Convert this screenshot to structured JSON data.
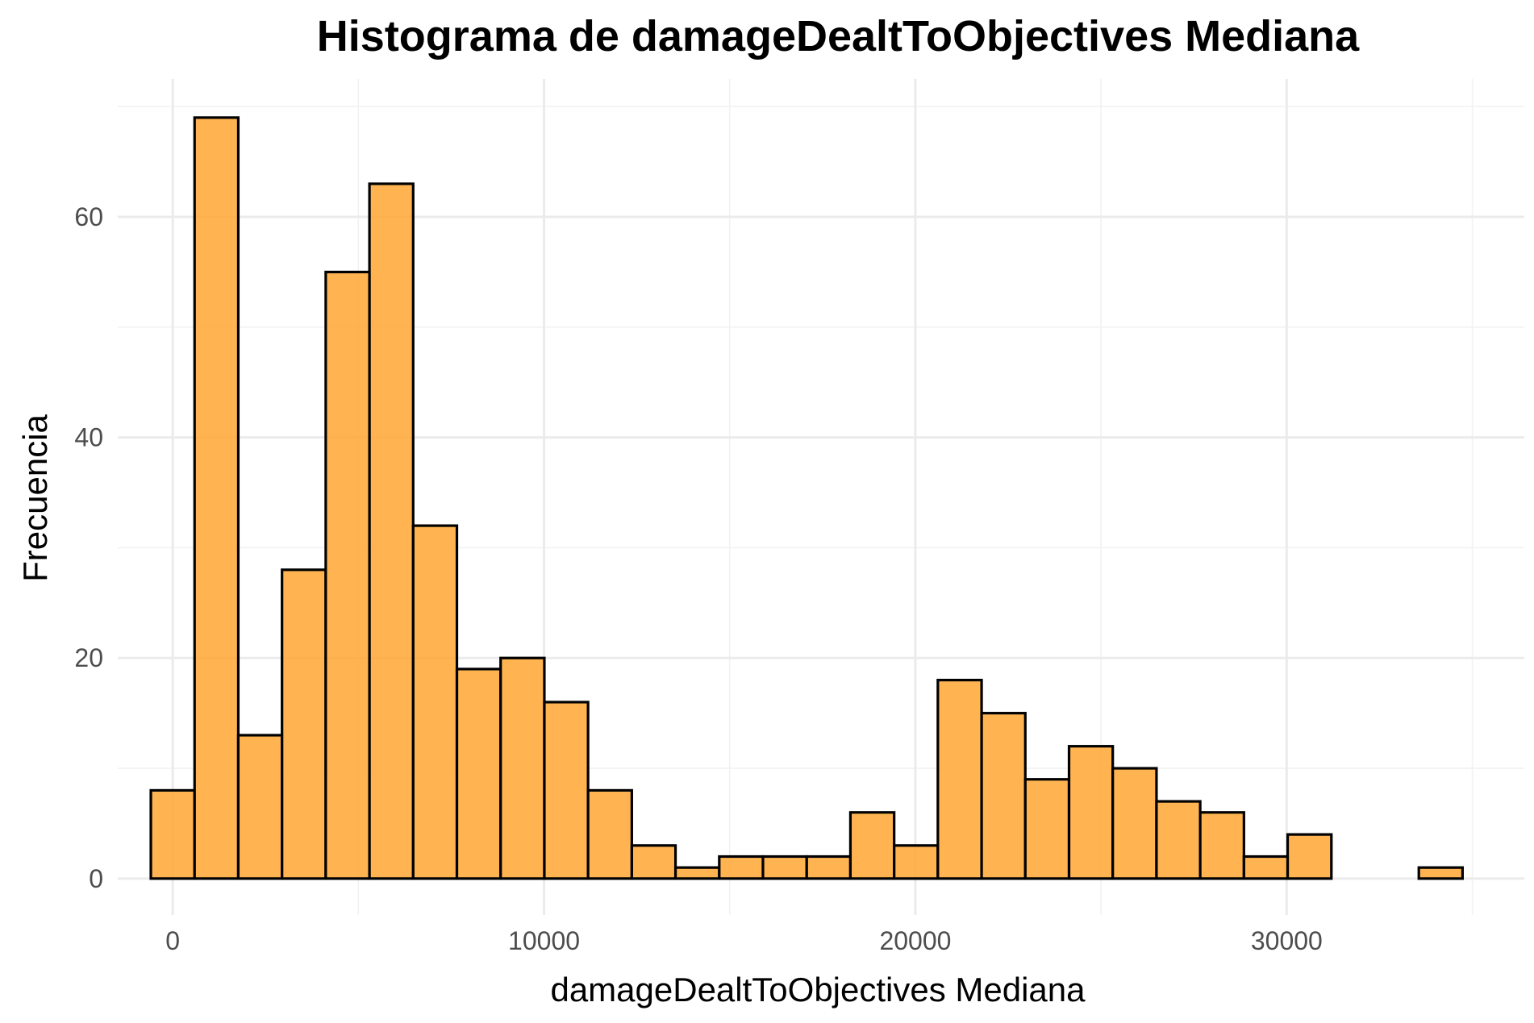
{
  "chart_data": {
    "type": "bar",
    "title": "Histograma de damageDealtToObjectives Mediana",
    "xlabel": "damageDealtToObjectives Mediana",
    "ylabel": "Frecuencia",
    "bin_width": 1177.5,
    "bins": [
      {
        "x0": -589,
        "x1": 589,
        "count": 8
      },
      {
        "x0": 589,
        "x1": 1766,
        "count": 69
      },
      {
        "x0": 1766,
        "x1": 2944,
        "count": 13
      },
      {
        "x0": 2944,
        "x1": 4121,
        "count": 28
      },
      {
        "x0": 4121,
        "x1": 5299,
        "count": 55
      },
      {
        "x0": 5299,
        "x1": 6476,
        "count": 63
      },
      {
        "x0": 6476,
        "x1": 7654,
        "count": 32
      },
      {
        "x0": 7654,
        "x1": 8831,
        "count": 19
      },
      {
        "x0": 8831,
        "x1": 10009,
        "count": 20
      },
      {
        "x0": 10009,
        "x1": 11186,
        "count": 16
      },
      {
        "x0": 11186,
        "x1": 12364,
        "count": 8
      },
      {
        "x0": 12364,
        "x1": 13541,
        "count": 3
      },
      {
        "x0": 13541,
        "x1": 14719,
        "count": 1
      },
      {
        "x0": 14719,
        "x1": 15896,
        "count": 2
      },
      {
        "x0": 15896,
        "x1": 17074,
        "count": 2
      },
      {
        "x0": 17074,
        "x1": 18251,
        "count": 2
      },
      {
        "x0": 18251,
        "x1": 19429,
        "count": 6
      },
      {
        "x0": 19429,
        "x1": 20606,
        "count": 3
      },
      {
        "x0": 20606,
        "x1": 21784,
        "count": 18
      },
      {
        "x0": 21784,
        "x1": 22961,
        "count": 15
      },
      {
        "x0": 22961,
        "x1": 24139,
        "count": 9
      },
      {
        "x0": 24139,
        "x1": 25316,
        "count": 12
      },
      {
        "x0": 25316,
        "x1": 26494,
        "count": 10
      },
      {
        "x0": 26494,
        "x1": 27671,
        "count": 7
      },
      {
        "x0": 27671,
        "x1": 28849,
        "count": 6
      },
      {
        "x0": 28849,
        "x1": 30026,
        "count": 2
      },
      {
        "x0": 30026,
        "x1": 31204,
        "count": 4
      },
      {
        "x0": 31204,
        "x1": 32381,
        "count": 0
      },
      {
        "x0": 32381,
        "x1": 33559,
        "count": 0
      },
      {
        "x0": 33559,
        "x1": 34736,
        "count": 1
      }
    ],
    "xlim": [
      -1480,
      36400
    ],
    "ylim": [
      -3.3,
      72.5
    ],
    "x_ticks": [
      0,
      10000,
      20000,
      30000
    ],
    "x_tick_labels": [
      "0",
      "10000",
      "20000",
      "30000"
    ],
    "x_minor_ticks": [
      -5000,
      5000,
      15000,
      25000,
      35000
    ],
    "y_ticks": [
      0,
      20,
      40,
      60
    ],
    "y_tick_labels": [
      "0",
      "20",
      "40",
      "60"
    ],
    "y_minor_ticks": [
      10,
      30,
      50,
      70
    ],
    "bar_fill": "#ffa733",
    "bar_stroke": "#000000",
    "grid": true,
    "legend": "none"
  }
}
